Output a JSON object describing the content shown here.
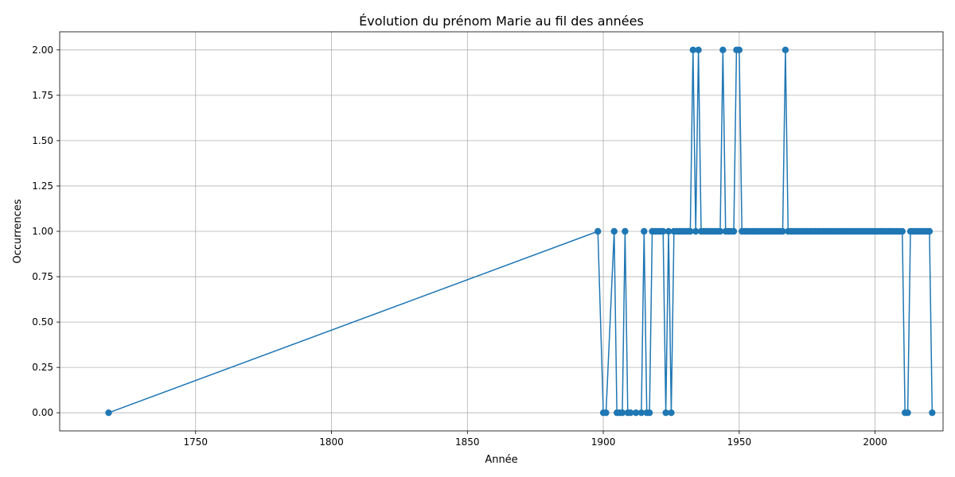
{
  "chart_data": {
    "type": "line",
    "title": "Évolution du prénom Marie au fil des années",
    "xlabel": "Année",
    "ylabel": "Occurrences",
    "xlim": [
      1700,
      2025
    ],
    "ylim": [
      -0.1,
      2.1
    ],
    "x_ticks": [
      1750,
      1800,
      1850,
      1900,
      1950,
      2000
    ],
    "y_ticks": [
      "0.00",
      "0.25",
      "0.50",
      "0.75",
      "1.00",
      "1.25",
      "1.50",
      "1.75",
      "2.00"
    ],
    "grid": true,
    "series": [
      {
        "color": "#1f77b4",
        "marker": "circle",
        "points": [
          [
            1718,
            0
          ],
          [
            1898,
            1
          ],
          [
            1900,
            0
          ],
          [
            1901,
            0
          ],
          [
            1904,
            1
          ],
          [
            1905,
            0
          ],
          [
            1906,
            0
          ],
          [
            1907,
            0
          ],
          [
            1908,
            1
          ],
          [
            1909,
            0
          ],
          [
            1910,
            0
          ],
          [
            1912,
            0
          ],
          [
            1914,
            0
          ],
          [
            1915,
            1
          ],
          [
            1916,
            0
          ],
          [
            1917,
            0
          ],
          [
            1918,
            1
          ],
          [
            1919,
            1
          ],
          [
            1920,
            1
          ],
          [
            1921,
            1
          ],
          [
            1922,
            1
          ],
          [
            1923,
            0
          ],
          [
            1924,
            1
          ],
          [
            1925,
            0
          ],
          [
            1926,
            1
          ],
          [
            1927,
            1
          ],
          [
            1928,
            1
          ],
          [
            1929,
            1
          ],
          [
            1930,
            1
          ],
          [
            1931,
            1
          ],
          [
            1932,
            1
          ],
          [
            1933,
            2
          ],
          [
            1934,
            1
          ],
          [
            1935,
            2
          ],
          [
            1936,
            1
          ],
          [
            1937,
            1
          ],
          [
            1938,
            1
          ],
          [
            1939,
            1
          ],
          [
            1940,
            1
          ],
          [
            1941,
            1
          ],
          [
            1942,
            1
          ],
          [
            1943,
            1
          ],
          [
            1944,
            2
          ],
          [
            1945,
            1
          ],
          [
            1946,
            1
          ],
          [
            1947,
            1
          ],
          [
            1948,
            1
          ],
          [
            1949,
            2
          ],
          [
            1950,
            2
          ],
          [
            1951,
            1
          ],
          [
            1952,
            1
          ],
          [
            1953,
            1
          ],
          [
            1954,
            1
          ],
          [
            1955,
            1
          ],
          [
            1956,
            1
          ],
          [
            1957,
            1
          ],
          [
            1958,
            1
          ],
          [
            1959,
            1
          ],
          [
            1960,
            1
          ],
          [
            1961,
            1
          ],
          [
            1962,
            1
          ],
          [
            1963,
            1
          ],
          [
            1964,
            1
          ],
          [
            1965,
            1
          ],
          [
            1966,
            1
          ],
          [
            1967,
            2
          ],
          [
            1968,
            1
          ],
          [
            1969,
            1
          ],
          [
            1970,
            1
          ],
          [
            1971,
            1
          ],
          [
            1972,
            1
          ],
          [
            1973,
            1
          ],
          [
            1974,
            1
          ],
          [
            1975,
            1
          ],
          [
            1976,
            1
          ],
          [
            1977,
            1
          ],
          [
            1978,
            1
          ],
          [
            1979,
            1
          ],
          [
            1980,
            1
          ],
          [
            1981,
            1
          ],
          [
            1982,
            1
          ],
          [
            1983,
            1
          ],
          [
            1984,
            1
          ],
          [
            1985,
            1
          ],
          [
            1986,
            1
          ],
          [
            1987,
            1
          ],
          [
            1988,
            1
          ],
          [
            1989,
            1
          ],
          [
            1990,
            1
          ],
          [
            1991,
            1
          ],
          [
            1992,
            1
          ],
          [
            1993,
            1
          ],
          [
            1994,
            1
          ],
          [
            1995,
            1
          ],
          [
            1996,
            1
          ],
          [
            1997,
            1
          ],
          [
            1998,
            1
          ],
          [
            1999,
            1
          ],
          [
            2000,
            1
          ],
          [
            2001,
            1
          ],
          [
            2002,
            1
          ],
          [
            2003,
            1
          ],
          [
            2004,
            1
          ],
          [
            2005,
            1
          ],
          [
            2006,
            1
          ],
          [
            2007,
            1
          ],
          [
            2008,
            1
          ],
          [
            2009,
            1
          ],
          [
            2010,
            1
          ],
          [
            2011,
            0
          ],
          [
            2012,
            0
          ],
          [
            2013,
            1
          ],
          [
            2014,
            1
          ],
          [
            2015,
            1
          ],
          [
            2016,
            1
          ],
          [
            2017,
            1
          ],
          [
            2018,
            1
          ],
          [
            2019,
            1
          ],
          [
            2020,
            1
          ],
          [
            2021,
            0
          ]
        ]
      }
    ]
  }
}
